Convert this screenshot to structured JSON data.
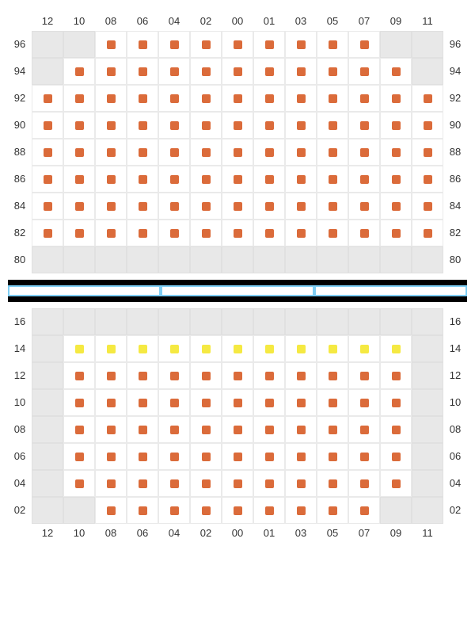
{
  "colors": {
    "seat_orange": "#db6b3a",
    "seat_yellow": "#f5e942",
    "cell_empty": "#e8e8e8",
    "cell_bg": "#ffffff",
    "grid_border": "#eaeaea",
    "label_text": "#333333",
    "divider_black": "#000000",
    "divider_blue": "#7ecef4"
  },
  "column_labels": [
    "12",
    "10",
    "08",
    "06",
    "04",
    "02",
    "00",
    "01",
    "03",
    "05",
    "07",
    "09",
    "11"
  ],
  "top_section": {
    "row_labels": [
      "96",
      "94",
      "92",
      "90",
      "88",
      "86",
      "84",
      "82",
      "80"
    ],
    "cells": [
      [
        "e",
        "e",
        "o",
        "o",
        "o",
        "o",
        "o",
        "o",
        "o",
        "o",
        "o",
        "e",
        "e"
      ],
      [
        "e",
        "o",
        "o",
        "o",
        "o",
        "o",
        "o",
        "o",
        "o",
        "o",
        "o",
        "o",
        "e"
      ],
      [
        "o",
        "o",
        "o",
        "o",
        "o",
        "o",
        "o",
        "o",
        "o",
        "o",
        "o",
        "o",
        "o"
      ],
      [
        "o",
        "o",
        "o",
        "o",
        "o",
        "o",
        "o",
        "o",
        "o",
        "o",
        "o",
        "o",
        "o"
      ],
      [
        "o",
        "o",
        "o",
        "o",
        "o",
        "o",
        "o",
        "o",
        "o",
        "o",
        "o",
        "o",
        "o"
      ],
      [
        "o",
        "o",
        "o",
        "o",
        "o",
        "o",
        "o",
        "o",
        "o",
        "o",
        "o",
        "o",
        "o"
      ],
      [
        "o",
        "o",
        "o",
        "o",
        "o",
        "o",
        "o",
        "o",
        "o",
        "o",
        "o",
        "o",
        "o"
      ],
      [
        "o",
        "o",
        "o",
        "o",
        "o",
        "o",
        "o",
        "o",
        "o",
        "o",
        "o",
        "o",
        "o"
      ],
      [
        "e",
        "e",
        "e",
        "e",
        "e",
        "e",
        "e",
        "e",
        "e",
        "e",
        "e",
        "e",
        "e"
      ]
    ]
  },
  "bottom_section": {
    "row_labels": [
      "16",
      "14",
      "12",
      "10",
      "08",
      "06",
      "04",
      "02"
    ],
    "cells": [
      [
        "e",
        "e",
        "e",
        "e",
        "e",
        "e",
        "e",
        "e",
        "e",
        "e",
        "e",
        "e",
        "e"
      ],
      [
        "e",
        "y",
        "y",
        "y",
        "y",
        "y",
        "y",
        "y",
        "y",
        "y",
        "y",
        "y",
        "e"
      ],
      [
        "e",
        "o",
        "o",
        "o",
        "o",
        "o",
        "o",
        "o",
        "o",
        "o",
        "o",
        "o",
        "e"
      ],
      [
        "e",
        "o",
        "o",
        "o",
        "o",
        "o",
        "o",
        "o",
        "o",
        "o",
        "o",
        "o",
        "e"
      ],
      [
        "e",
        "o",
        "o",
        "o",
        "o",
        "o",
        "o",
        "o",
        "o",
        "o",
        "o",
        "o",
        "e"
      ],
      [
        "e",
        "o",
        "o",
        "o",
        "o",
        "o",
        "o",
        "o",
        "o",
        "o",
        "o",
        "o",
        "e"
      ],
      [
        "e",
        "o",
        "o",
        "o",
        "o",
        "o",
        "o",
        "o",
        "o",
        "o",
        "o",
        "o",
        "e"
      ],
      [
        "e",
        "e",
        "o",
        "o",
        "o",
        "o",
        "o",
        "o",
        "o",
        "o",
        "o",
        "e",
        "e"
      ]
    ]
  }
}
